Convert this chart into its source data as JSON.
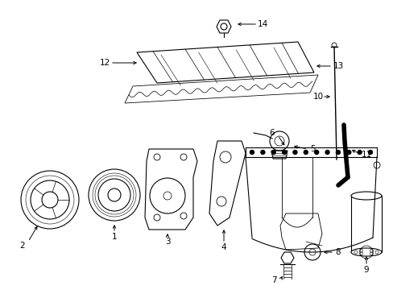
{
  "background_color": "#ffffff",
  "line_color": "#000000",
  "text_color": "#000000",
  "fig_w": 4.89,
  "fig_h": 3.6,
  "dpi": 100
}
